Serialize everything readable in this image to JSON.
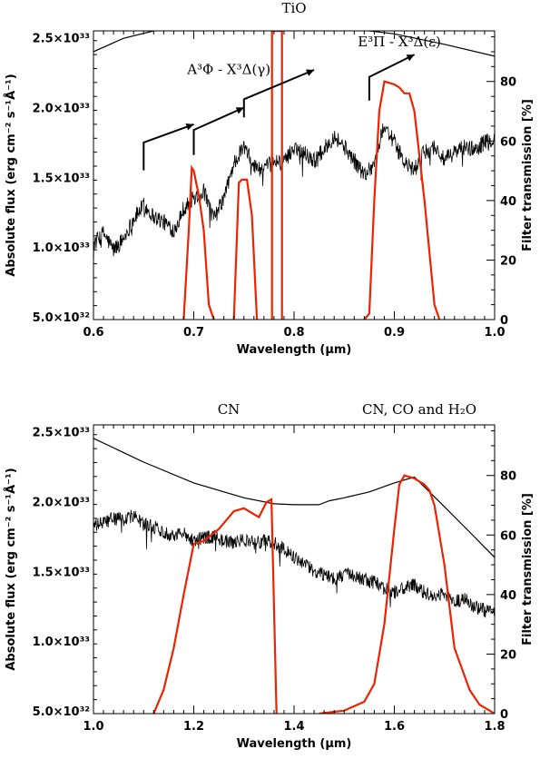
{
  "chart_data": [
    {
      "type": "line",
      "annotation_title": "TiO",
      "xlabel": "Wavelength (μm)",
      "ylabel_left": "Absolute flux (erg cm⁻² s⁻¹Å⁻¹)",
      "ylabel_right": "Filter transmission [%]",
      "xlim": [
        0.6,
        1.0
      ],
      "ylim_left": [
        4.8e+32,
        2.55e+33
      ],
      "ylim_right": [
        0,
        97
      ],
      "x_ticks": [
        0.6,
        0.7,
        0.8,
        0.9,
        1.0
      ],
      "x_tick_labels": [
        "0.6",
        "0.7",
        "0.8",
        "0.9",
        "1.0"
      ],
      "y_ticks_left": [
        5e+32,
        1e+33,
        1.5e+33,
        2e+33,
        2.5e+33
      ],
      "y_tick_labels_left": [
        "5.0×10³²",
        "1.0×10³³",
        "1.5×10³³",
        "2.0×10³³",
        "2.5×10³³"
      ],
      "y_ticks_right": [
        0,
        20,
        40,
        60,
        80
      ],
      "y_tick_labels_right": [
        "0",
        "20",
        "40",
        "60",
        "80"
      ],
      "annotations": [
        {
          "text": "A³Φ - X³Δ(γ)",
          "x": 0.735,
          "y": 2.24e+33
        },
        {
          "text": "E³Π - X³Δ(ε)",
          "x": 0.905,
          "y": 2.44e+33
        }
      ],
      "bandheads": [
        {
          "x": [
            0.65,
            0.65,
            0.7
          ],
          "y": [
            1.55e+33,
            1.75e+33,
            1.88e+33
          ]
        },
        {
          "x": [
            0.7,
            0.7,
            0.75
          ],
          "y": [
            1.66e+33,
            1.84e+33,
            2e+33
          ]
        },
        {
          "x": [
            0.75,
            0.75,
            0.82
          ],
          "y": [
            1.93e+33,
            2.06e+33,
            2.27e+33
          ]
        },
        {
          "x": [
            0.875,
            0.875,
            0.92
          ],
          "y": [
            2.05e+33,
            2.22e+33,
            2.38e+33
          ]
        }
      ],
      "series": [
        {
          "role": "spectrum",
          "color": "#000000",
          "axis": "left",
          "noise": 6e+31,
          "x": [
            0.6,
            0.61,
            0.62,
            0.63,
            0.64,
            0.65,
            0.66,
            0.67,
            0.68,
            0.69,
            0.7,
            0.71,
            0.72,
            0.73,
            0.74,
            0.75,
            0.76,
            0.77,
            0.78,
            0.79,
            0.8,
            0.81,
            0.82,
            0.83,
            0.84,
            0.85,
            0.86,
            0.87,
            0.88,
            0.89,
            0.9,
            0.91,
            0.92,
            0.93,
            0.94,
            0.95,
            0.96,
            0.97,
            0.98,
            0.99,
            1.0
          ],
          "y": [
            1.02e+33,
            1.1e+33,
            9.8e+32,
            1.06e+33,
            1.2e+33,
            1.3e+33,
            1.22e+33,
            1.18e+33,
            1.12e+33,
            1.28e+33,
            1.35e+33,
            1.4e+33,
            1.2e+33,
            1.35e+33,
            1.6e+33,
            1.72e+33,
            1.58e+33,
            1.55e+33,
            1.62e+33,
            1.6e+33,
            1.72e+33,
            1.68e+33,
            1.62e+33,
            1.7e+33,
            1.8e+33,
            1.72e+33,
            1.62e+33,
            1.52e+33,
            1.6e+33,
            1.88e+33,
            1.75e+33,
            1.6e+33,
            1.55e+33,
            1.68e+33,
            1.72e+33,
            1.62e+33,
            1.68e+33,
            1.72e+33,
            1.7e+33,
            1.75e+33,
            1.78e+33
          ]
        },
        {
          "role": "smooth-curve",
          "color": "#000000",
          "axis": "right",
          "x": [
            0.6,
            0.63,
            0.66,
            0.7,
            0.75,
            0.8,
            0.85,
            0.9,
            0.95,
            1.0
          ],
          "y": [
            90,
            94.5,
            97,
            98,
            98,
            98,
            98,
            96,
            92.5,
            88.5
          ]
        },
        {
          "role": "filter",
          "color": "#ee2200",
          "axis": "right",
          "x": [
            0.69,
            0.695,
            0.698,
            0.7,
            0.703,
            0.705,
            0.71,
            0.715,
            0.72
          ],
          "y": [
            0,
            30,
            51,
            50,
            45,
            42,
            30,
            5,
            0
          ]
        },
        {
          "role": "filter",
          "color": "#ee2200",
          "axis": "right",
          "x": [
            0.74,
            0.745,
            0.748,
            0.753,
            0.758,
            0.763
          ],
          "y": [
            0,
            46,
            47,
            47,
            35,
            0
          ]
        },
        {
          "role": "filter",
          "color": "#ee2200",
          "axis": "right",
          "x": [
            0.778,
            0.778,
            0.788,
            0.788
          ],
          "y": [
            0,
            97,
            97,
            0
          ]
        },
        {
          "role": "filter",
          "color": "#ee2200",
          "axis": "right",
          "x": [
            0.87,
            0.875,
            0.88,
            0.885,
            0.89,
            0.9,
            0.905,
            0.91,
            0.915,
            0.92,
            0.93,
            0.94,
            0.945
          ],
          "y": [
            0,
            2,
            40,
            70,
            80,
            79,
            78,
            76,
            76,
            70,
            40,
            5,
            0
          ]
        }
      ]
    },
    {
      "type": "line",
      "annotation_left": "CN",
      "annotation_right": "CN, CO and H₂O",
      "xlabel": "Wavelength (μm)",
      "ylabel_left": "Absolute flux (erg cm⁻² s⁻¹Å⁻¹)",
      "ylabel_right": "Filter transmission [%]",
      "xlim": [
        1.0,
        1.8
      ],
      "ylim_left": [
        4.8e+32,
        2.55e+33
      ],
      "ylim_right": [
        0,
        97
      ],
      "x_ticks": [
        1.0,
        1.2,
        1.4,
        1.6,
        1.8
      ],
      "x_tick_labels": [
        "1.0",
        "1.2",
        "1.4",
        "1.6",
        "1.8"
      ],
      "y_ticks_left": [
        5e+32,
        1e+33,
        1.5e+33,
        2e+33,
        2.5e+33
      ],
      "y_tick_labels_left": [
        "5.0×10³²",
        "1.0×10³³",
        "1.5×10³³",
        "2.0×10³³",
        "2.5×10³³"
      ],
      "y_ticks_right": [
        0,
        20,
        40,
        60,
        80
      ],
      "y_tick_labels_right": [
        "0",
        "20",
        "40",
        "60",
        "80"
      ],
      "series": [
        {
          "role": "spectrum",
          "color": "#000000",
          "axis": "left",
          "noise": 5e+31,
          "x": [
            1.0,
            1.02,
            1.04,
            1.06,
            1.08,
            1.1,
            1.12,
            1.14,
            1.16,
            1.18,
            1.2,
            1.22,
            1.24,
            1.26,
            1.28,
            1.3,
            1.32,
            1.34,
            1.36,
            1.38,
            1.4,
            1.42,
            1.44,
            1.46,
            1.48,
            1.5,
            1.52,
            1.54,
            1.56,
            1.58,
            1.6,
            1.62,
            1.64,
            1.66,
            1.68,
            1.7,
            1.72,
            1.74,
            1.76,
            1.78,
            1.8
          ],
          "y": [
            1.82e+33,
            1.85e+33,
            1.88e+33,
            1.87e+33,
            1.9e+33,
            1.84e+33,
            1.82e+33,
            1.78e+33,
            1.76e+33,
            1.78e+33,
            1.72e+33,
            1.74e+33,
            1.75e+33,
            1.72e+33,
            1.7e+33,
            1.73e+33,
            1.7e+33,
            1.72e+33,
            1.7e+33,
            1.66e+33,
            1.6e+33,
            1.55e+33,
            1.5e+33,
            1.48e+33,
            1.45e+33,
            1.48e+33,
            1.46e+33,
            1.44e+33,
            1.42e+33,
            1.38e+33,
            1.35e+33,
            1.38e+33,
            1.4e+33,
            1.35e+33,
            1.32e+33,
            1.34e+33,
            1.28e+33,
            1.3e+33,
            1.25e+33,
            1.22e+33,
            1.2e+33
          ]
        },
        {
          "role": "smooth-curve",
          "color": "#000000",
          "axis": "right",
          "x": [
            1.0,
            1.1,
            1.2,
            1.3,
            1.36,
            1.4,
            1.45,
            1.47,
            1.5,
            1.55,
            1.6,
            1.64,
            1.7,
            1.75,
            1.8
          ],
          "y": [
            92.5,
            84.5,
            77.5,
            72.5,
            70.5,
            70.2,
            70.2,
            71.5,
            72.5,
            74.5,
            77.5,
            79.5,
            69.5,
            61,
            52.5
          ]
        },
        {
          "role": "filter",
          "color": "#ee2200",
          "axis": "right",
          "x": [
            1.12,
            1.14,
            1.16,
            1.18,
            1.2,
            1.22,
            1.25,
            1.28,
            1.3,
            1.32,
            1.33,
            1.345,
            1.355,
            1.365
          ],
          "y": [
            0,
            8,
            22,
            40,
            57,
            58,
            62,
            68,
            69,
            67,
            66,
            71,
            72,
            0
          ]
        },
        {
          "role": "filter",
          "color": "#ee2200",
          "axis": "right",
          "x": [
            1.45,
            1.5,
            1.54,
            1.56,
            1.58,
            1.6,
            1.61,
            1.62,
            1.64,
            1.66,
            1.67,
            1.68,
            1.7,
            1.72,
            1.75,
            1.77,
            1.79,
            1.8
          ],
          "y": [
            0,
            1,
            4,
            10,
            30,
            62,
            77,
            80,
            79,
            77,
            75,
            70,
            50,
            22,
            8,
            3,
            1,
            0
          ]
        }
      ]
    }
  ]
}
